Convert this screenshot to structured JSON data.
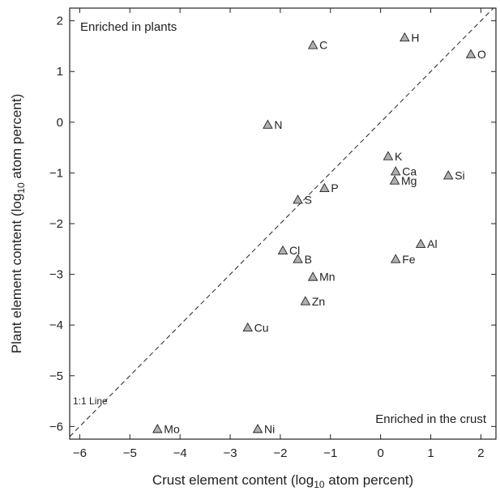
{
  "chart_data": {
    "type": "scatter",
    "title": "",
    "xlabel": {
      "main": "Crust element content (log",
      "sub": "10",
      "tail": " atom percent)"
    },
    "ylabel": {
      "main": "Plant element content (log",
      "sub": "10",
      "tail": " atom percent)"
    },
    "xlim": [
      -6.2,
      2.3
    ],
    "ylim": [
      -6.25,
      2.25
    ],
    "xticks": [
      -6,
      -5,
      -4,
      -3,
      -2,
      -1,
      0,
      1,
      2
    ],
    "yticks": [
      -6,
      -5,
      -4,
      -3,
      -2,
      -1,
      0,
      1,
      2
    ],
    "grid": false,
    "marker": "triangle",
    "marker_color": "#b0b0b0",
    "reference_line": {
      "label": "1:1 Line",
      "style": "dashed",
      "slope": 1,
      "intercept": 0
    },
    "annotations": [
      {
        "text": "Enriched in plants",
        "position": "top-left"
      },
      {
        "text": "Enriched in the crust",
        "position": "bottom-right"
      }
    ],
    "points": [
      {
        "label": "C",
        "x": -1.35,
        "y": 1.52
      },
      {
        "label": "H",
        "x": 0.48,
        "y": 1.67
      },
      {
        "label": "O",
        "x": 1.8,
        "y": 1.34
      },
      {
        "label": "N",
        "x": -2.25,
        "y": -0.05
      },
      {
        "label": "K",
        "x": 0.15,
        "y": -0.67
      },
      {
        "label": "Ca",
        "x": 0.3,
        "y": -0.97
      },
      {
        "label": "Mg",
        "x": 0.28,
        "y": -1.15
      },
      {
        "label": "Si",
        "x": 1.35,
        "y": -1.05
      },
      {
        "label": "P",
        "x": -1.12,
        "y": -1.3
      },
      {
        "label": "S",
        "x": -1.65,
        "y": -1.53
      },
      {
        "label": "Al",
        "x": 0.8,
        "y": -2.4
      },
      {
        "label": "Cl",
        "x": -1.95,
        "y": -2.53
      },
      {
        "label": "B",
        "x": -1.65,
        "y": -2.7
      },
      {
        "label": "Fe",
        "x": 0.3,
        "y": -2.7
      },
      {
        "label": "Mn",
        "x": -1.35,
        "y": -3.05
      },
      {
        "label": "Zn",
        "x": -1.5,
        "y": -3.53
      },
      {
        "label": "Cu",
        "x": -2.65,
        "y": -4.05
      },
      {
        "label": "Mo",
        "x": -4.45,
        "y": -6.05
      },
      {
        "label": "Ni",
        "x": -2.45,
        "y": -6.05
      }
    ]
  }
}
